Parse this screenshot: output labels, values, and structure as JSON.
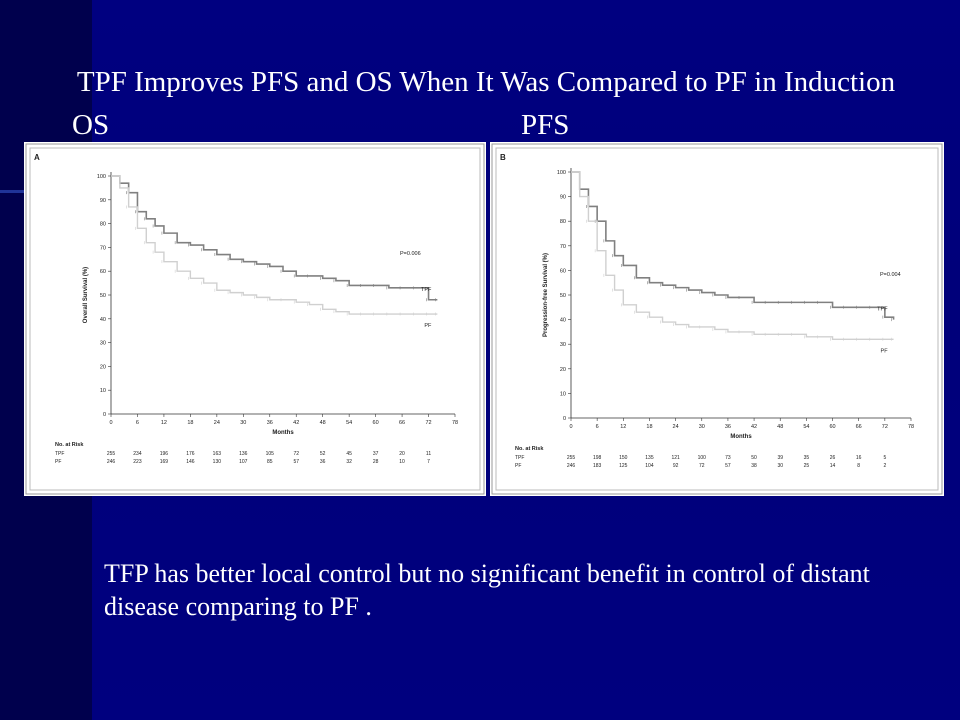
{
  "slide": {
    "title": "TPF Improves PFS and OS When It Was Compared to PF in Induction",
    "label_left": "OS",
    "label_right": "PFS",
    "conclusion": "TFP has better local control but no significant benefit in control of distant disease comparing to PF ."
  },
  "colors": {
    "background": "#000080",
    "text": "#ffffff",
    "tpf_line": "#808080",
    "pf_line": "#d0d0d0"
  },
  "chart_data": [
    {
      "type": "line",
      "panel": "A",
      "ylabel": "Overall Survival (%)",
      "xlabel": "Months",
      "xlim": [
        0,
        78
      ],
      "ylim": [
        0,
        100
      ],
      "xticks": [
        "0",
        "6",
        "12",
        "18",
        "24",
        "30",
        "36",
        "42",
        "48",
        "54",
        "60",
        "66",
        "72",
        "78"
      ],
      "yticks": [
        "0",
        "10",
        "20",
        "30",
        "40",
        "50",
        "60",
        "70",
        "80",
        "90",
        "100"
      ],
      "p_value": "P=0.006",
      "series": [
        {
          "name": "TPF",
          "x": [
            0,
            2,
            4,
            6,
            8,
            10,
            12,
            15,
            18,
            21,
            24,
            27,
            30,
            33,
            36,
            39,
            42,
            45,
            48,
            51,
            54,
            57,
            60,
            63,
            66,
            69,
            72,
            74
          ],
          "y": [
            100,
            97,
            93,
            85,
            82,
            79,
            76,
            72,
            71,
            69,
            67,
            65,
            64,
            63,
            62,
            60,
            58,
            58,
            57,
            56,
            54,
            54,
            54,
            53,
            53,
            53,
            48,
            48
          ]
        },
        {
          "name": "PF",
          "x": [
            0,
            2,
            4,
            6,
            8,
            10,
            12,
            15,
            18,
            21,
            24,
            27,
            30,
            33,
            36,
            39,
            42,
            45,
            48,
            51,
            54,
            57,
            60,
            63,
            66,
            69,
            72,
            74
          ],
          "y": [
            100,
            95,
            87,
            78,
            72,
            68,
            64,
            60,
            57,
            55,
            52,
            51,
            50,
            49,
            48,
            48,
            47,
            46,
            44,
            43,
            42,
            42,
            42,
            42,
            42,
            42,
            42,
            42
          ]
        }
      ],
      "risk_table": {
        "heading": "No. at Risk",
        "rows": [
          {
            "name": "TPF",
            "values": [
              "255",
              "234",
              "196",
              "176",
              "163",
              "136",
              "105",
              "72",
              "52",
              "45",
              "37",
              "20",
              "11"
            ]
          },
          {
            "name": "PF",
            "values": [
              "246",
              "223",
              "169",
              "146",
              "130",
              "107",
              "85",
              "57",
              "36",
              "32",
              "28",
              "10",
              "7"
            ]
          }
        ]
      }
    },
    {
      "type": "line",
      "panel": "B",
      "ylabel": "Progression-free Survival (%)",
      "xlabel": "Months",
      "xlim": [
        0,
        78
      ],
      "ylim": [
        0,
        100
      ],
      "xticks": [
        "0",
        "6",
        "12",
        "18",
        "24",
        "30",
        "36",
        "42",
        "48",
        "54",
        "60",
        "66",
        "72",
        "78"
      ],
      "yticks": [
        "0",
        "10",
        "20",
        "30",
        "40",
        "50",
        "60",
        "70",
        "80",
        "90",
        "100"
      ],
      "p_value": "P=0.004",
      "series": [
        {
          "name": "TPF",
          "x": [
            0,
            2,
            4,
            6,
            8,
            10,
            12,
            15,
            18,
            21,
            24,
            27,
            30,
            33,
            36,
            39,
            42,
            45,
            48,
            51,
            54,
            57,
            60,
            63,
            66,
            69,
            72,
            74
          ],
          "y": [
            100,
            93,
            86,
            80,
            72,
            66,
            62,
            57,
            55,
            54,
            53,
            52,
            51,
            50,
            49,
            49,
            47,
            47,
            47,
            47,
            47,
            47,
            45,
            45,
            45,
            45,
            41,
            40
          ]
        },
        {
          "name": "PF",
          "x": [
            0,
            2,
            4,
            6,
            8,
            10,
            12,
            15,
            18,
            21,
            24,
            27,
            30,
            33,
            36,
            39,
            42,
            45,
            48,
            51,
            54,
            57,
            60,
            63,
            66,
            69,
            72,
            74
          ],
          "y": [
            100,
            90,
            80,
            68,
            58,
            52,
            46,
            43,
            41,
            39,
            38,
            37,
            37,
            36,
            35,
            35,
            34,
            34,
            34,
            34,
            33,
            33,
            32,
            32,
            32,
            32,
            32,
            32
          ]
        }
      ],
      "risk_table": {
        "heading": "No. at Risk",
        "rows": [
          {
            "name": "TPF",
            "values": [
              "255",
              "198",
              "150",
              "135",
              "121",
              "100",
              "73",
              "50",
              "39",
              "35",
              "26",
              "16",
              "5"
            ]
          },
          {
            "name": "PF",
            "values": [
              "246",
              "183",
              "125",
              "104",
              "92",
              "72",
              "57",
              "38",
              "30",
              "25",
              "14",
              "8",
              "2"
            ]
          }
        ]
      }
    }
  ]
}
